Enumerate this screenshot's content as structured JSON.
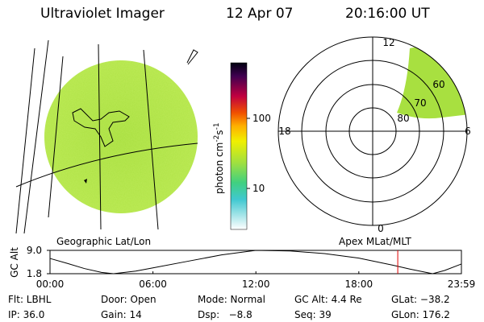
{
  "header": {
    "title": "Ultraviolet Imager",
    "date": "12 Apr 07",
    "time": "20:16:00 UT"
  },
  "image_labels": {
    "left": "Geographic Lat/Lon",
    "right": "Apex MLat/MLT"
  },
  "colorbar": {
    "label_parts": [
      "photon cm",
      "-2",
      "s",
      "-1"
    ],
    "range": [
      2.6,
      620
    ],
    "log": true,
    "ticks": [
      100,
      10
    ]
  },
  "polar": {
    "mlt_labels": [
      "12",
      "18",
      "6",
      "0"
    ],
    "mlat_labels": [
      "60",
      "70",
      "80"
    ]
  },
  "chart_data": {
    "type": "line",
    "ylabel": "GC Alt",
    "x": [
      0,
      1,
      2,
      3,
      3.7,
      5,
      6,
      8,
      10,
      12,
      14,
      16,
      18,
      20,
      21,
      22.3,
      23,
      23.98
    ],
    "series": [
      {
        "color": "#000000",
        "values": [
          6.5,
          5.0,
          3.4,
          2.2,
          1.8,
          2.6,
          3.6,
          5.6,
          7.6,
          9.0,
          8.8,
          8.0,
          6.6,
          4.4,
          3.2,
          1.8,
          2.8,
          4.8
        ]
      }
    ],
    "marker_x": 20.27,
    "marker_color": "#e00000",
    "xlim": [
      0,
      23.98
    ],
    "ylim": [
      1.8,
      9.0
    ],
    "xticks": [
      {
        "value": 0,
        "label": "00:00"
      },
      {
        "value": 6,
        "label": "06:00"
      },
      {
        "value": 12,
        "label": "12:00"
      },
      {
        "value": 18,
        "label": "18:00"
      },
      {
        "value": 23.98,
        "label": "23:59"
      }
    ],
    "yticks": [
      {
        "value": 9,
        "label": "9.0"
      },
      1.8
    ]
  },
  "info": {
    "row1": [
      "Flt: LBHL",
      "Door: Open",
      "Mode: Normal",
      "GC Alt: 4.4 Re",
      "GLat: −38.2"
    ],
    "row2": [
      "IP: 36.0",
      "Gain: 14",
      "Dsp:   −8.8",
      "Seq: 39",
      "GLon: 176.2"
    ]
  }
}
